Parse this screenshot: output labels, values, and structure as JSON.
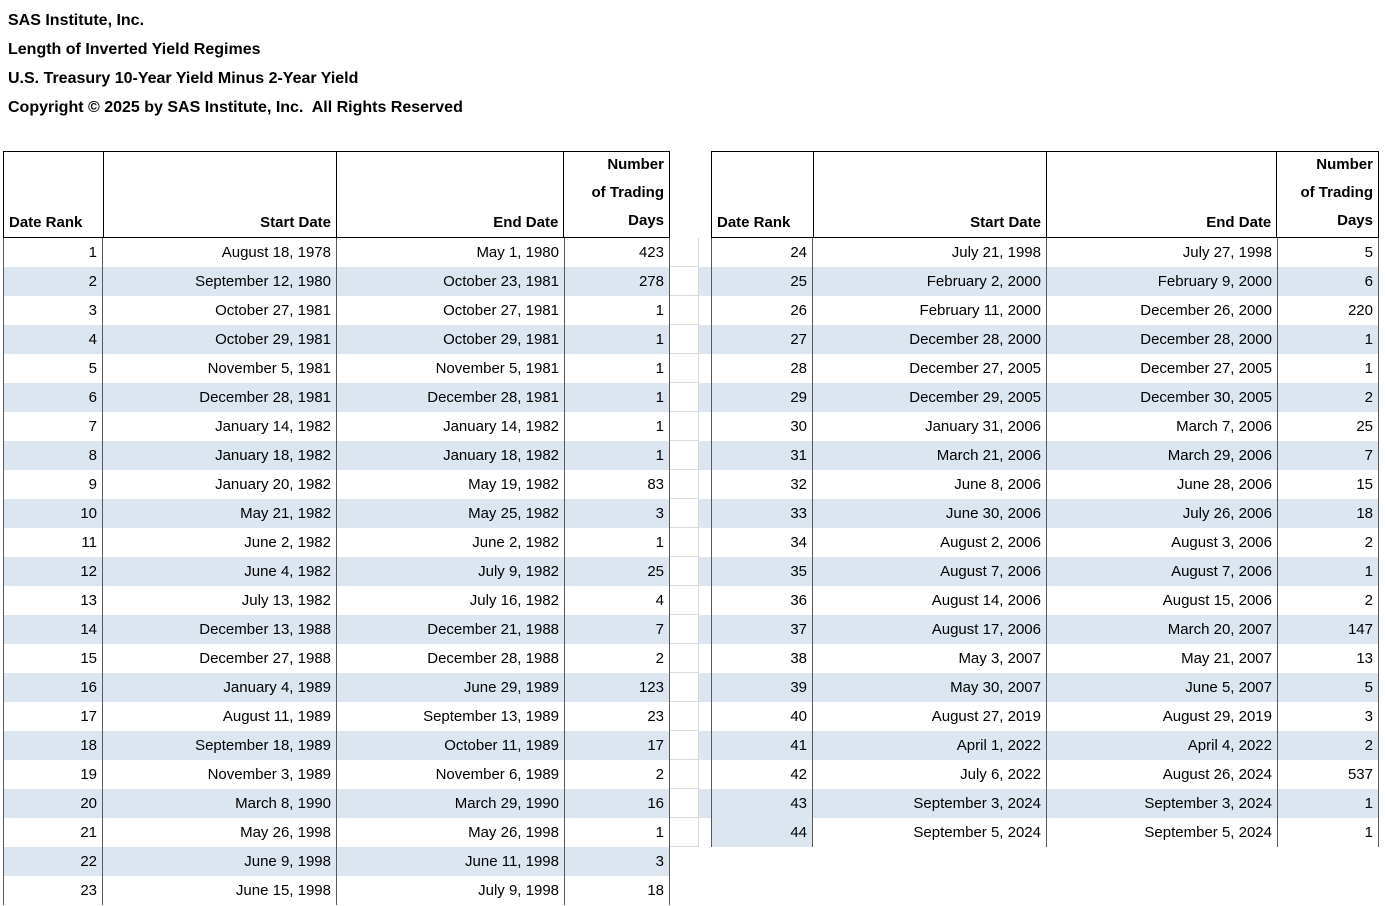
{
  "titles": {
    "line1": "SAS Institute, Inc.",
    "line2": "Length of Inverted Yield Regimes",
    "line3": "U.S. Treasury 10-Year Yield Minus 2-Year Yield",
    "line4": "Copyright © 2025 by SAS Institute, Inc.  All Rights Reserved"
  },
  "columns": {
    "rank": "Date Rank",
    "start": "Start Date",
    "end": "End Date",
    "days": "Number\nof Trading\nDays"
  },
  "colors": {
    "band": "#DCE6F1",
    "header_border": "#000000",
    "body_separator": "#595959",
    "gridline": "#D9D9D9"
  },
  "chart_data": {
    "type": "table",
    "title": "Length of Inverted Yield Regimes",
    "subtitle": "U.S. Treasury 10-Year Yield Minus 2-Year Yield",
    "source": "SAS Institute, Inc.",
    "copyright": "Copyright © 2025 by SAS Institute, Inc.  All Rights Reserved",
    "columns": [
      "Date Rank",
      "Start Date",
      "End Date",
      "Number of Trading Days"
    ],
    "layout": "two side-by-side tables: ranks 1-23 left, ranks 24-44 right, zebra banding on even ranks",
    "rows": [
      [
        1,
        "August 18, 1978",
        "May 1, 1980",
        423
      ],
      [
        2,
        "September 12, 1980",
        "October 23, 1981",
        278
      ],
      [
        3,
        "October 27, 1981",
        "October 27, 1981",
        1
      ],
      [
        4,
        "October 29, 1981",
        "October 29, 1981",
        1
      ],
      [
        5,
        "November 5, 1981",
        "November 5, 1981",
        1
      ],
      [
        6,
        "December 28, 1981",
        "December 28, 1981",
        1
      ],
      [
        7,
        "January 14, 1982",
        "January 14, 1982",
        1
      ],
      [
        8,
        "January 18, 1982",
        "January 18, 1982",
        1
      ],
      [
        9,
        "January 20, 1982",
        "May 19, 1982",
        83
      ],
      [
        10,
        "May 21, 1982",
        "May 25, 1982",
        3
      ],
      [
        11,
        "June 2, 1982",
        "June 2, 1982",
        1
      ],
      [
        12,
        "June 4, 1982",
        "July 9, 1982",
        25
      ],
      [
        13,
        "July 13, 1982",
        "July 16, 1982",
        4
      ],
      [
        14,
        "December 13, 1988",
        "December 21, 1988",
        7
      ],
      [
        15,
        "December 27, 1988",
        "December 28, 1988",
        2
      ],
      [
        16,
        "January 4, 1989",
        "June 29, 1989",
        123
      ],
      [
        17,
        "August 11, 1989",
        "September 13, 1989",
        23
      ],
      [
        18,
        "September 18, 1989",
        "October 11, 1989",
        17
      ],
      [
        19,
        "November 3, 1989",
        "November 6, 1989",
        2
      ],
      [
        20,
        "March 8, 1990",
        "March 29, 1990",
        16
      ],
      [
        21,
        "May 26, 1998",
        "May 26, 1998",
        1
      ],
      [
        22,
        "June 9, 1998",
        "June 11, 1998",
        3
      ],
      [
        23,
        "June 15, 1998",
        "July 9, 1998",
        18
      ],
      [
        24,
        "July 21, 1998",
        "July 27, 1998",
        5
      ],
      [
        25,
        "February 2, 2000",
        "February 9, 2000",
        6
      ],
      [
        26,
        "February 11, 2000",
        "December 26, 2000",
        220
      ],
      [
        27,
        "December 28, 2000",
        "December 28, 2000",
        1
      ],
      [
        28,
        "December 27, 2005",
        "December 27, 2005",
        1
      ],
      [
        29,
        "December 29, 2005",
        "December 30, 2005",
        2
      ],
      [
        30,
        "January 31, 2006",
        "March 7, 2006",
        25
      ],
      [
        31,
        "March 21, 2006",
        "March 29, 2006",
        7
      ],
      [
        32,
        "June 8, 2006",
        "June 28, 2006",
        15
      ],
      [
        33,
        "June 30, 2006",
        "July 26, 2006",
        18
      ],
      [
        34,
        "August 2, 2006",
        "August 3, 2006",
        2
      ],
      [
        35,
        "August 7, 2006",
        "August 7, 2006",
        1
      ],
      [
        36,
        "August 14, 2006",
        "August 15, 2006",
        2
      ],
      [
        37,
        "August 17, 2006",
        "March 20, 2007",
        147
      ],
      [
        38,
        "May 3, 2007",
        "May 21, 2007",
        13
      ],
      [
        39,
        "May 30, 2007",
        "June 5, 2007",
        5
      ],
      [
        40,
        "August 27, 2019",
        "August 29, 2019",
        3
      ],
      [
        41,
        "April 1, 2022",
        "April 4, 2022",
        2
      ],
      [
        42,
        "July 6, 2022",
        "August 26, 2024",
        537
      ],
      [
        43,
        "September 3, 2024",
        "September 3, 2024",
        1
      ],
      [
        44,
        "September 5, 2024",
        "September 5, 2024",
        1
      ]
    ]
  }
}
